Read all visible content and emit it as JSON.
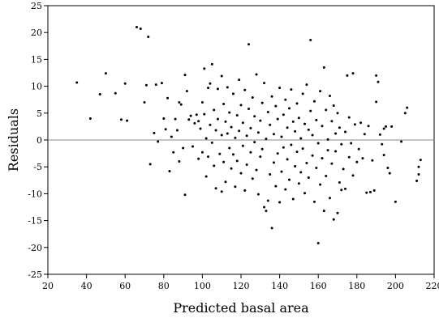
{
  "chart_data": {
    "type": "scatter",
    "title": "",
    "xlabel": "Predicted basal area",
    "ylabel": "Residuals",
    "xlim": [
      20,
      220
    ],
    "ylim": [
      -25,
      25
    ],
    "xticks": [
      20,
      40,
      60,
      80,
      100,
      120,
      140,
      160,
      180,
      200,
      220
    ],
    "yticks": [
      -25,
      -20,
      -15,
      -10,
      -5,
      0,
      5,
      10,
      15,
      20,
      25
    ],
    "reference_line_y": 0,
    "grid": false,
    "colors": {
      "points": "#000000",
      "reference_line": "#888888",
      "frame": "#000000"
    },
    "points": [
      [
        35,
        10.7
      ],
      [
        42,
        4
      ],
      [
        47,
        8.5
      ],
      [
        50,
        12.4
      ],
      [
        55,
        8.7
      ],
      [
        58,
        3.8
      ],
      [
        60,
        10.5
      ],
      [
        61,
        3.6
      ],
      [
        66,
        21
      ],
      [
        68,
        20.7
      ],
      [
        70,
        7
      ],
      [
        71,
        10.2
      ],
      [
        72,
        19.2
      ],
      [
        73,
        -4.5
      ],
      [
        75,
        1.3
      ],
      [
        76,
        10.3
      ],
      [
        77,
        -0.3
      ],
      [
        79,
        10.6
      ],
      [
        80,
        4
      ],
      [
        81,
        2
      ],
      [
        82,
        7.8
      ],
      [
        83,
        -5.8
      ],
      [
        84,
        0.6
      ],
      [
        85,
        -2.3
      ],
      [
        86,
        3.9
      ],
      [
        87,
        1.8
      ],
      [
        88,
        7
      ],
      [
        88,
        -4
      ],
      [
        89,
        6.6
      ],
      [
        90,
        -1.5
      ],
      [
        91,
        12.1
      ],
      [
        91,
        -10.2
      ],
      [
        92,
        9.1
      ],
      [
        93,
        3.8
      ],
      [
        94,
        4.5
      ],
      [
        95,
        -1.2
      ],
      [
        96,
        3.1
      ],
      [
        97,
        4.7
      ],
      [
        98,
        3.5
      ],
      [
        98,
        -3.5
      ],
      [
        99,
        2.1
      ],
      [
        100,
        7
      ],
      [
        100,
        -2.3
      ],
      [
        101,
        13.3
      ],
      [
        101,
        4.8
      ],
      [
        102,
        0.3
      ],
      [
        102,
        -6.8
      ],
      [
        103,
        9.7
      ],
      [
        103,
        -3.1
      ],
      [
        104,
        10.5
      ],
      [
        104,
        2.8
      ],
      [
        105,
        14.1
      ],
      [
        105,
        -0.5
      ],
      [
        106,
        -4.8
      ],
      [
        106,
        5.6
      ],
      [
        107,
        1.8
      ],
      [
        107,
        -9
      ],
      [
        108,
        9.5
      ],
      [
        108,
        3.9
      ],
      [
        109,
        -2.6
      ],
      [
        110,
        11.9
      ],
      [
        110,
        0.9
      ],
      [
        110,
        -9.6
      ],
      [
        111,
        6.7
      ],
      [
        111,
        -4.1
      ],
      [
        112,
        3.4
      ],
      [
        112,
        -7.8
      ],
      [
        113,
        1.2
      ],
      [
        113,
        9.8
      ],
      [
        114,
        -1.5
      ],
      [
        114,
        5.1
      ],
      [
        115,
        -5.3
      ],
      [
        115,
        2.4
      ],
      [
        116,
        8.6
      ],
      [
        116,
        -2.7
      ],
      [
        117,
        0.4
      ],
      [
        117,
        -8.7
      ],
      [
        118,
        4.6
      ],
      [
        118,
        -3.9
      ],
      [
        119,
        11.2
      ],
      [
        119,
        1.7
      ],
      [
        120,
        -6.2
      ],
      [
        120,
        6.5
      ],
      [
        121,
        -1.1
      ],
      [
        121,
        3.2
      ],
      [
        122,
        -9.4
      ],
      [
        122,
        9.3
      ],
      [
        123,
        0.8
      ],
      [
        123,
        -4.6
      ],
      [
        124,
        5.8
      ],
      [
        124,
        17.8
      ],
      [
        125,
        -2.3
      ],
      [
        125,
        2.2
      ],
      [
        126,
        -7.2
      ],
      [
        126,
        7.9
      ],
      [
        127,
        -0.4
      ],
      [
        127,
        4.4
      ],
      [
        128,
        -5.6
      ],
      [
        128,
        12.2
      ],
      [
        129,
        1.4
      ],
      [
        129,
        -10.1
      ],
      [
        130,
        3.6
      ],
      [
        130,
        -3.1
      ],
      [
        131,
        6.9
      ],
      [
        131,
        -1.7
      ],
      [
        132,
        -12.5
      ],
      [
        132,
        10.6
      ],
      [
        133,
        -13.2
      ],
      [
        133,
        0.2
      ],
      [
        134,
        -11.3
      ],
      [
        134,
        5.2
      ],
      [
        135,
        -6.4
      ],
      [
        135,
        2.8
      ],
      [
        136,
        -16.4
      ],
      [
        136,
        8.1
      ],
      [
        137,
        -4.2
      ],
      [
        137,
        1.1
      ],
      [
        138,
        -8.6
      ],
      [
        138,
        6.3
      ],
      [
        139,
        -2.5
      ],
      [
        139,
        3.9
      ],
      [
        140,
        -11.6
      ],
      [
        140,
        9.7
      ],
      [
        141,
        0.6
      ],
      [
        141,
        -5.9
      ],
      [
        142,
        4.7
      ],
      [
        142,
        -1.4
      ],
      [
        143,
        -9.2
      ],
      [
        143,
        7.5
      ],
      [
        144,
        2.3
      ],
      [
        144,
        -3.6
      ],
      [
        145,
        5.9
      ],
      [
        145,
        -7.4
      ],
      [
        146,
        -0.9
      ],
      [
        146,
        9.4
      ],
      [
        147,
        -11
      ],
      [
        147,
        3.4
      ],
      [
        148,
        -4.9
      ],
      [
        148,
        1.6
      ],
      [
        149,
        6.8
      ],
      [
        149,
        -2.2
      ],
      [
        150,
        -8.1
      ],
      [
        150,
        4.1
      ],
      [
        151,
        0.3
      ],
      [
        151,
        -6
      ],
      [
        152,
        8.6
      ],
      [
        152,
        -1.6
      ],
      [
        153,
        3
      ],
      [
        153,
        -9.9
      ],
      [
        154,
        10.3
      ],
      [
        154,
        -4.3
      ],
      [
        155,
        1.9
      ],
      [
        155,
        -7
      ],
      [
        156,
        18.6
      ],
      [
        156,
        5.4
      ],
      [
        157,
        -2.9
      ],
      [
        157,
        0.9
      ],
      [
        158,
        -11.5
      ],
      [
        158,
        7.2
      ],
      [
        159,
        -5.2
      ],
      [
        159,
        3.7
      ],
      [
        160,
        -19.2
      ],
      [
        160,
        -0.6
      ],
      [
        161,
        9.1
      ],
      [
        161,
        -8.3
      ],
      [
        162,
        2.6
      ],
      [
        162,
        -3.4
      ],
      [
        163,
        -13.2
      ],
      [
        163,
        13.5
      ],
      [
        164,
        5.6
      ],
      [
        164,
        -6.7
      ],
      [
        165,
        0.1
      ],
      [
        165,
        -1.9
      ],
      [
        166,
        8.2
      ],
      [
        166,
        -10.8
      ],
      [
        167,
        3.5
      ],
      [
        167,
        -4.4
      ],
      [
        168,
        -14.8
      ],
      [
        168,
        6.4
      ],
      [
        169,
        -2.1
      ],
      [
        169,
        1.2
      ],
      [
        170,
        -13.6
      ],
      [
        170,
        5
      ],
      [
        171,
        -7.9
      ],
      [
        171,
        2.3
      ],
      [
        172,
        -9.3
      ],
      [
        172,
        -0.8
      ],
      [
        173,
        -5.4
      ],
      [
        174,
        -9.1
      ],
      [
        174,
        1.5
      ],
      [
        175,
        12
      ],
      [
        176,
        -3.2
      ],
      [
        176,
        4.2
      ],
      [
        177,
        -0.6
      ],
      [
        178,
        12.4
      ],
      [
        178,
        -6.6
      ],
      [
        179,
        2.9
      ],
      [
        180,
        -4.1
      ],
      [
        181,
        -1.7
      ],
      [
        182,
        3.2
      ],
      [
        183,
        -3.4
      ],
      [
        184,
        1.1
      ],
      [
        185,
        -9.8
      ],
      [
        186,
        2.6
      ],
      [
        187,
        -9.7
      ],
      [
        188,
        -3.8
      ],
      [
        189,
        -9.4
      ],
      [
        190,
        12
      ],
      [
        190,
        7.1
      ],
      [
        191,
        10.8
      ],
      [
        192,
        1
      ],
      [
        193,
        -0.8
      ],
      [
        194,
        -2.8
      ],
      [
        194,
        2.1
      ],
      [
        195,
        2.5
      ],
      [
        196,
        -5.2
      ],
      [
        197,
        -6.2
      ],
      [
        198,
        2.5
      ],
      [
        200,
        -11.5
      ],
      [
        203,
        -0.3
      ],
      [
        205,
        5
      ],
      [
        206,
        6
      ],
      [
        211,
        -7.6
      ],
      [
        212,
        -5
      ],
      [
        213,
        -3.7
      ],
      [
        212,
        -6.4
      ]
    ]
  }
}
